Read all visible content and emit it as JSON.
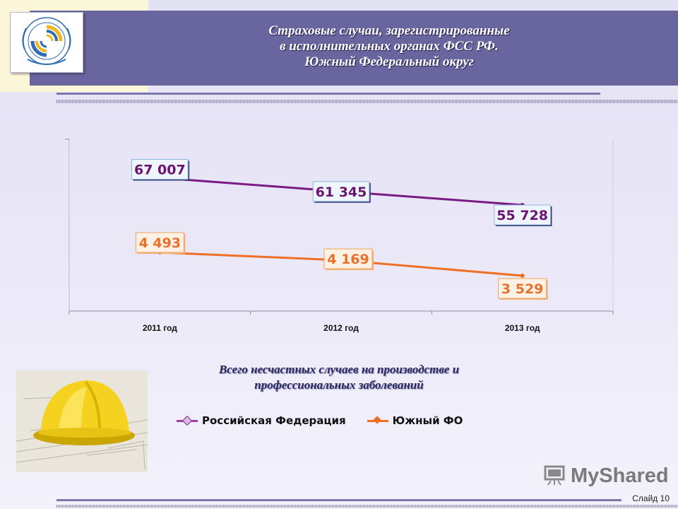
{
  "header": {
    "title_lines": [
      "Страховые случаи, зарегистрированные",
      "в исполнительных органах ФСС РФ.",
      "Южный  Федеральный округ"
    ]
  },
  "chart_data": {
    "type": "line",
    "title": "Всего несчастных случаев на производстве и профессиональных заболеваний",
    "title_lines": [
      "Всего несчастных случаев на производстве и",
      "профессиональных заболеваний"
    ],
    "categories": [
      "2011 год",
      "2012 год",
      "2013 год"
    ],
    "series": [
      {
        "name": "Российская Федерация",
        "values": [
          67007,
          61345,
          55728
        ],
        "labels": [
          "67 007",
          "61 345",
          "55 728"
        ],
        "color": "#7a1a82"
      },
      {
        "name": "Южный ФО",
        "values": [
          4493,
          4169,
          3529
        ],
        "labels": [
          "4 493",
          "4 169",
          "3 529"
        ],
        "color": "#ef6f23"
      }
    ],
    "grid": false,
    "legend_position": "bottom"
  },
  "footer": {
    "watermark": "MyShared",
    "slide_label": "Слайд",
    "slide_number": "10"
  },
  "colors": {
    "header_bg": "#69659f",
    "accent_yellow": "#fbf6d8"
  },
  "icons": {
    "logo": "fss-emblem-icon",
    "photo": "hard-hat-blueprints-image"
  }
}
